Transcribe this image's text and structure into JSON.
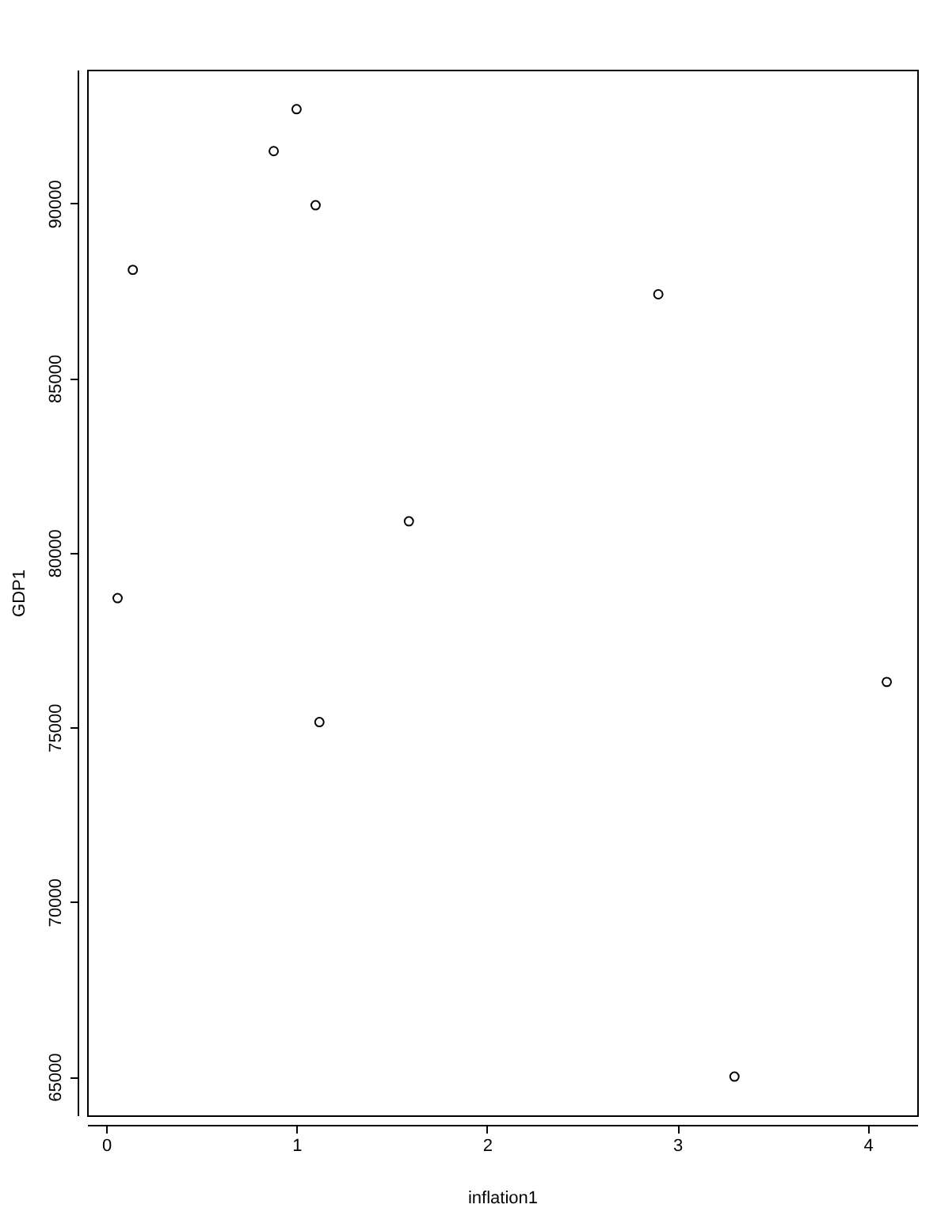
{
  "chart_data": {
    "type": "scatter",
    "xlabel": "inflation1",
    "ylabel": "GDP1",
    "x": [
      0.06,
      0.14,
      0.88,
      1.0,
      1.1,
      1.12,
      1.59,
      2.9,
      3.3,
      4.1
    ],
    "values": [
      78700,
      88100,
      91500,
      92700,
      89950,
      75150,
      80900,
      87400,
      65000,
      76300
    ],
    "color": "#000000",
    "marker": "circle",
    "grid": false,
    "xlim": [
      -0.1,
      4.26
    ],
    "ylim": [
      63890,
      93830
    ],
    "xticks": [
      0,
      1,
      2,
      3,
      4
    ],
    "yticks": [
      65000,
      70000,
      75000,
      80000,
      85000,
      90000
    ]
  }
}
